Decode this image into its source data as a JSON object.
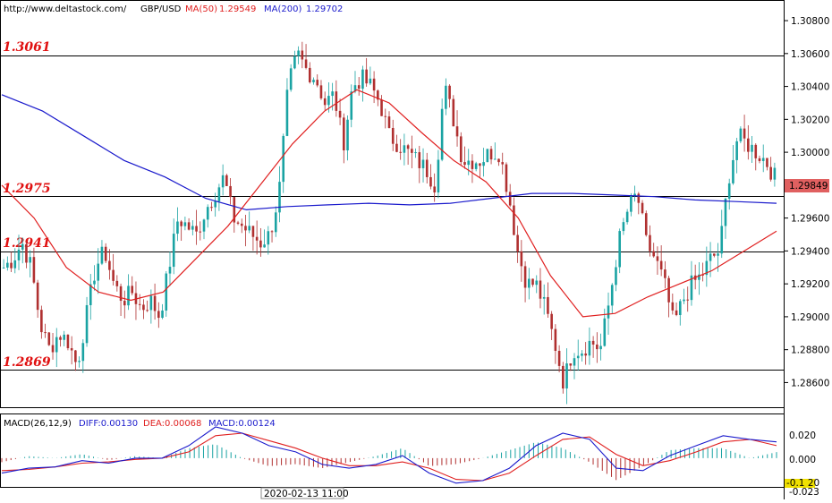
{
  "header": {
    "url": "http://www.deltastock.com/",
    "symbol": "GBP/USD",
    "ma50_label": "MA(50)",
    "ma50_value": "1.29549",
    "ma200_label": "MA(200)",
    "ma200_value": "1.29702"
  },
  "macd_header": {
    "title": "MACD(26,12,9)",
    "diff": "DIFF:0.00130",
    "dea": "DEA:0.00068",
    "macd": "MACD:0.00124"
  },
  "time_label": "2020-02-13 11:00",
  "colors": {
    "up_candle": "#1aa3a3",
    "down_candle": "#b03030",
    "ma50": "#e02020",
    "ma200": "#1a1acc",
    "level_text": "#e01010",
    "price_tag_bg": "#e06060",
    "diff_line": "#1a1acc",
    "dea_line": "#e02020",
    "macd_pos": "#1aa3a3",
    "macd_neg": "#b03030"
  },
  "chart_data": {
    "type": "candlestick",
    "symbol": "GBP/USD",
    "price_axis": {
      "ticks": [
        "1.30800",
        "1.30600",
        "1.30400",
        "1.30200",
        "1.30000",
        "1.29800",
        "1.29600",
        "1.29400",
        "1.29200",
        "1.29000",
        "1.28800",
        "1.28600"
      ],
      "range": [
        1.2845,
        1.3092
      ]
    },
    "current_price": "1.29849",
    "levels": [
      {
        "label": "1.3061",
        "value": 1.3061
      },
      {
        "label": "1.2975",
        "value": 1.2975
      },
      {
        "label": "1.2941",
        "value": 1.2941
      },
      {
        "label": "1.2869",
        "value": 1.2869
      }
    ],
    "price_path": [
      1.293,
      1.2935,
      1.2945,
      1.293,
      1.2895,
      1.288,
      1.289,
      1.2885,
      1.287,
      1.29,
      1.293,
      1.294,
      1.292,
      1.291,
      1.2915,
      1.2905,
      1.291,
      1.29,
      1.293,
      1.296,
      1.2955,
      1.295,
      1.2965,
      1.2975,
      1.2985,
      1.296,
      1.2955,
      1.295,
      1.2945,
      1.295,
      1.2975,
      1.304,
      1.306,
      1.305,
      1.3045,
      1.303,
      1.3035,
      1.3005,
      1.304,
      1.3045,
      1.304,
      1.303,
      1.301,
      1.3005,
      1.3,
      1.2995,
      1.299,
      1.298,
      1.304,
      1.302,
      1.2995,
      1.2995,
      1.2995,
      1.3,
      1.3,
      1.2975,
      1.294,
      1.292,
      1.292,
      1.2905,
      1.2885,
      1.286,
      1.288,
      1.288,
      1.2885,
      1.288,
      1.291,
      1.2945,
      1.2965,
      1.2975,
      1.2945,
      1.2935,
      1.292,
      1.2895,
      1.291,
      1.292,
      1.2925,
      1.2935,
      1.294,
      1.2985,
      1.301,
      1.3005,
      1.3,
      1.2995,
      1.2985
    ],
    "ma50": [
      1.298,
      1.296,
      1.293,
      1.2915,
      1.291,
      1.2915,
      1.2935,
      1.2955,
      1.298,
      1.3005,
      1.3025,
      1.3038,
      1.303,
      1.3012,
      1.2995,
      1.2982,
      1.296,
      1.2925,
      1.29,
      1.2902,
      1.2912,
      1.292,
      1.2928,
      1.294,
      1.2952
    ],
    "ma200": [
      1.3035,
      1.3025,
      1.301,
      1.2995,
      1.2985,
      1.2972,
      1.2965,
      1.2967,
      1.2968,
      1.2969,
      1.2968,
      1.2969,
      1.2972,
      1.2975,
      1.2975,
      1.2974,
      1.2973,
      1.2971,
      1.297,
      1.2969
    ],
    "macd": {
      "axis_ticks": [
        "0.020",
        "0.000",
        "-0.023"
      ],
      "current_marker": "-0.1 20",
      "diff": [
        -0.012,
        -0.008,
        -0.007,
        -0.002,
        -0.004,
        0.0,
        0.0,
        0.01,
        0.025,
        0.02,
        0.01,
        0.005,
        -0.005,
        -0.008,
        -0.005,
        0.002,
        -0.012,
        -0.02,
        -0.018,
        -0.008,
        0.01,
        0.02,
        0.015,
        -0.008,
        -0.01,
        0.002,
        0.01,
        0.018,
        0.015,
        0.013
      ],
      "dea": [
        -0.01,
        -0.009,
        -0.007,
        -0.004,
        -0.003,
        -0.001,
        0.0,
        0.005,
        0.018,
        0.02,
        0.014,
        0.008,
        0.0,
        -0.006,
        -0.006,
        -0.003,
        -0.008,
        -0.017,
        -0.018,
        -0.012,
        0.002,
        0.015,
        0.017,
        0.003,
        -0.006,
        -0.002,
        0.005,
        0.013,
        0.015,
        0.01
      ]
    }
  }
}
